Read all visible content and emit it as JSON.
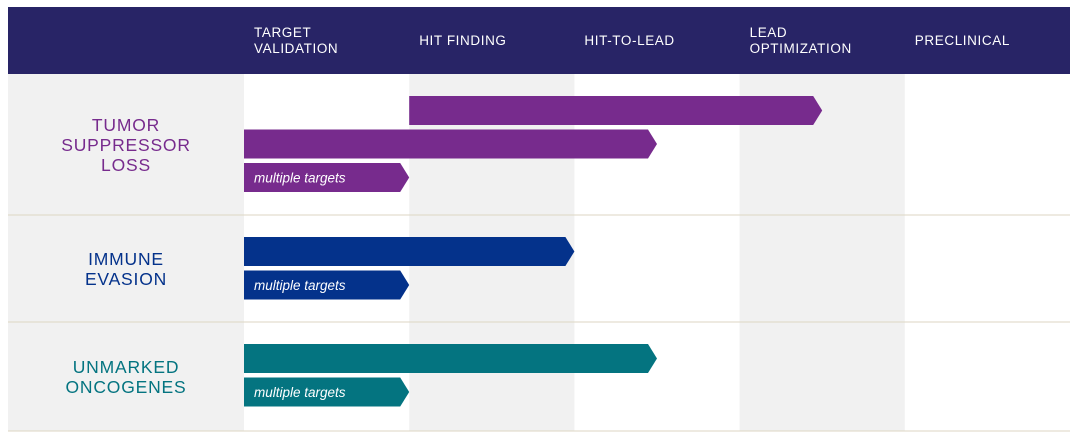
{
  "colors": {
    "header_bg": "#282466",
    "stage_shade": "#f1f1f1",
    "divider": "#ddd6c3",
    "tumor": "#772b8d",
    "immune": "#04328b",
    "oncogenes": "#047480"
  },
  "chart_data": {
    "type": "bar",
    "orientation": "horizontal",
    "title": "",
    "categories": [
      "TARGET\nVALIDATION",
      "HIT FINDING",
      "HIT-TO-LEAD",
      "LEAD\nOPTIMIZATION",
      "PRECLINICAL"
    ],
    "groups": [
      {
        "name": "TUMOR\nSUPPRESSOR\nLOSS",
        "color": "#772b8d",
        "programs": [
          {
            "start_stage": 1,
            "end_stage": 3.5,
            "label": ""
          },
          {
            "start_stage": 0,
            "end_stage": 2.5,
            "label": ""
          },
          {
            "start_stage": 0,
            "end_stage": 1,
            "label": "multiple targets"
          }
        ]
      },
      {
        "name": "IMMUNE\nEVASION",
        "color": "#04328b",
        "programs": [
          {
            "start_stage": 0,
            "end_stage": 2,
            "label": ""
          },
          {
            "start_stage": 0,
            "end_stage": 1,
            "label": "multiple targets"
          }
        ]
      },
      {
        "name": "UNMARKED\nONCOGENES",
        "color": "#047480",
        "programs": [
          {
            "start_stage": 0,
            "end_stage": 2.5,
            "label": ""
          },
          {
            "start_stage": 0,
            "end_stage": 1,
            "label": "multiple targets"
          }
        ]
      }
    ]
  }
}
